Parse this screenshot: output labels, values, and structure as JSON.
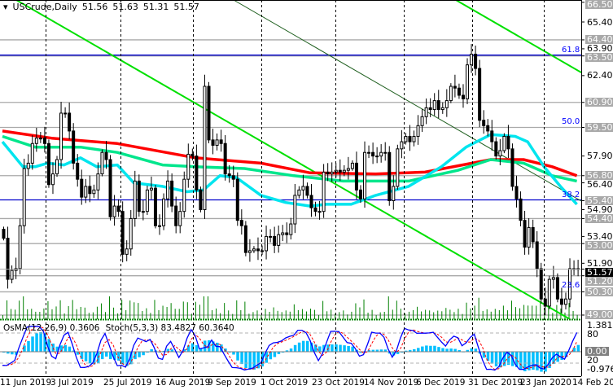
{
  "header": {
    "symbol": "USCrude,Daily",
    "open": "51.56",
    "high": "51.63",
    "low": "51.31",
    "close": "51.57"
  },
  "sub_header": {
    "osma": "OsMA(12,26,9) 0.3606",
    "stoch": "Stoch(5,3,3) 83.4827 60.3640"
  },
  "price_axis": [
    {
      "text": "66.50",
      "price": 66.5,
      "style": "hl"
    },
    {
      "text": "65.40",
      "price": 65.4,
      "style": "plain"
    },
    {
      "text": "64.40",
      "price": 64.4,
      "style": "hl"
    },
    {
      "text": "63.90",
      "price": 63.9,
      "style": "plain"
    },
    {
      "text": "63.50",
      "price": 63.5,
      "style": "hl"
    },
    {
      "text": "62.40",
      "price": 62.4,
      "style": "plain"
    },
    {
      "text": "60.90",
      "price": 60.9,
      "style": "hl"
    },
    {
      "text": "59.50",
      "price": 59.5,
      "style": "hl"
    },
    {
      "text": "57.90",
      "price": 57.9,
      "style": "plain"
    },
    {
      "text": "56.80",
      "price": 56.8,
      "style": "hl"
    },
    {
      "text": "56.40",
      "price": 56.4,
      "style": "plain"
    },
    {
      "text": "55.40",
      "price": 55.4,
      "style": "hl"
    },
    {
      "text": "54.90",
      "price": 54.9,
      "style": "plain"
    },
    {
      "text": "54.40",
      "price": 54.4,
      "style": "hl"
    },
    {
      "text": "53.40",
      "price": 53.4,
      "style": "plain"
    },
    {
      "text": "53.00",
      "price": 53.0,
      "style": "hl"
    },
    {
      "text": "51.90",
      "price": 51.9,
      "style": "plain"
    },
    {
      "text": "51.57",
      "price": 51.57,
      "style": "cur"
    },
    {
      "text": "51.20",
      "price": 51.2,
      "style": "hl"
    },
    {
      "text": "50.30",
      "price": 50.3,
      "style": "hl"
    },
    {
      "text": "49.00",
      "price": 49.0,
      "style": "hl"
    }
  ],
  "sub_axis": {
    "max": "1.3815",
    "upper": "80",
    "zero": "0.00",
    "lower": "20",
    "min": "-0.976"
  },
  "date_axis": [
    "11 Jun 2019",
    "3 Jul 2019",
    "25 Jul 2019",
    "16 Aug 2019",
    "9 Sep 2019",
    "1 Oct 2019",
    "23 Oct 2019",
    "14 Nov 2019",
    "6 Dec 2019",
    "31 Dec 2019",
    "23 Jan 2020",
    "14 Feb 2020"
  ],
  "fib_levels": [
    {
      "label": "61.8",
      "price": 63.5
    },
    {
      "label": "50.0",
      "price": 59.5
    },
    {
      "label": "38.2",
      "price": 55.4
    },
    {
      "label": "23.6",
      "price": 50.3
    }
  ],
  "horizontal_levels": [
    64.4,
    63.5,
    60.9,
    59.5,
    56.8,
    54.4,
    53.0,
    51.2,
    50.3,
    49.0
  ],
  "blue_levels": [
    63.5,
    55.4
  ],
  "colors": {
    "bull": "#ffffff",
    "bear": "#000000",
    "ma_slow": "#ff0000",
    "ma_mid": "#00e68c",
    "ma_fast": "#00e5ee",
    "trendline": "#00e000",
    "volume": "#008000",
    "osma": "#00bfff",
    "stoch_main": "#0000ff",
    "stoch_signal": "#ff0000",
    "fib": "#0000ff",
    "level": "#a9a9a9"
  },
  "chart_data": {
    "type": "candlestick",
    "symbol": "USCrude",
    "timeframe": "Daily",
    "ylim": [
      48.6,
      66.6
    ],
    "x_range": [
      "11 Jun 2019",
      "14 Feb 2020"
    ],
    "close": [
      53.3,
      51.0,
      51.5,
      51.6,
      54.0,
      57.2,
      57.5,
      58.6,
      58.9,
      58.9,
      58.6,
      56.3,
      56.9,
      57.7,
      60.3,
      60.3,
      59.3,
      57.5,
      56.6,
      55.6,
      56.2,
      55.8,
      56.0,
      56.9,
      58.1,
      57.7,
      54.5,
      55.1,
      54.8,
      52.4,
      52.7,
      54.4,
      56.5,
      54.8,
      54.8,
      56.0,
      56.1,
      54.0,
      54.0,
      55.5,
      56.5,
      55.1,
      54.0,
      54.8,
      56.6,
      58.0,
      57.9,
      56.0,
      54.9,
      61.8,
      58.8,
      58.5,
      58.8,
      58.6,
      56.9,
      56.8,
      56.6,
      54.3,
      54.0,
      52.5,
      52.6,
      52.7,
      52.6,
      52.6,
      53.4,
      53.4,
      52.9,
      53.5,
      53.6,
      53.5,
      54.1,
      55.7,
      56.0,
      56.2,
      55.7,
      55.0,
      54.8,
      54.8,
      57.0,
      56.9,
      57.0,
      57.1,
      57.0,
      57.1,
      57.2,
      57.5,
      56.0,
      55.5,
      58.1,
      58.1,
      57.9,
      57.9,
      58.1,
      58.1,
      55.4,
      56.2,
      58.3,
      58.7,
      59.0,
      58.7,
      59.0,
      59.6,
      60.1,
      60.6,
      60.5,
      61.0,
      60.5,
      60.6,
      61.0,
      61.8,
      61.7,
      61.3,
      61.1,
      63.0,
      63.6,
      62.8,
      59.9,
      59.6,
      59.3,
      58.7,
      57.9,
      58.2,
      59.0,
      58.3,
      56.2,
      55.5,
      54.3,
      52.8,
      53.9,
      53.1,
      51.6,
      49.9,
      49.5,
      51.0,
      51.1,
      49.9,
      49.6,
      49.9,
      51.6,
      51.6,
      51.57
    ],
    "moving_averages": [
      {
        "color": "ma_slow",
        "points": [
          [
            0,
            59.3
          ],
          [
            12,
            58.9
          ],
          [
            28,
            58.6
          ],
          [
            47,
            57.8
          ],
          [
            63,
            57.5
          ],
          [
            75,
            56.96
          ],
          [
            91,
            56.9
          ],
          [
            103,
            57.0
          ],
          [
            119,
            57.7
          ],
          [
            127,
            57.7
          ],
          [
            134,
            57.3
          ],
          [
            140,
            56.8
          ]
        ]
      },
      {
        "color": "ma_mid",
        "points": [
          [
            0,
            59.0
          ],
          [
            8,
            58.4
          ],
          [
            19,
            58.4
          ],
          [
            28,
            58.1
          ],
          [
            39,
            57.4
          ],
          [
            47,
            57.3
          ],
          [
            59,
            57.2
          ],
          [
            71,
            56.8
          ],
          [
            83,
            56.5
          ],
          [
            99,
            56.5
          ],
          [
            111,
            57.1
          ],
          [
            119,
            57.7
          ],
          [
            127,
            57.5
          ],
          [
            134,
            56.8
          ],
          [
            140,
            56.5
          ]
        ]
      },
      {
        "color": "ma_fast",
        "points": [
          [
            0,
            58.7
          ],
          [
            5,
            57.3
          ],
          [
            8,
            57.3
          ],
          [
            11,
            57.5
          ],
          [
            15,
            57.4
          ],
          [
            19,
            57.8
          ],
          [
            23,
            57.3
          ],
          [
            28,
            57.4
          ],
          [
            32,
            56.4
          ],
          [
            39,
            56.2
          ],
          [
            45,
            55.9
          ],
          [
            49,
            56.0
          ],
          [
            53,
            56.8
          ],
          [
            57,
            56.7
          ],
          [
            63,
            55.7
          ],
          [
            69,
            55.3
          ],
          [
            75,
            55.1
          ],
          [
            79,
            55.2
          ],
          [
            85,
            55.2
          ],
          [
            91,
            55.7
          ],
          [
            99,
            56.2
          ],
          [
            107,
            57.3
          ],
          [
            113,
            58.4
          ],
          [
            119,
            59.1
          ],
          [
            125,
            59.0
          ],
          [
            128,
            58.7
          ],
          [
            132,
            57.3
          ],
          [
            136,
            56.2
          ],
          [
            140,
            55.2
          ]
        ]
      }
    ],
    "indicators": [
      "OsMA(12,26,9)",
      "Stoch(5,3,3)"
    ]
  }
}
